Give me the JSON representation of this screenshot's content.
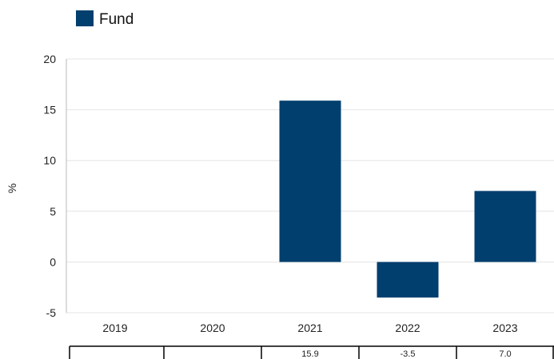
{
  "chart_data": {
    "type": "bar",
    "categories": [
      "2019",
      "2020",
      "2021",
      "2022",
      "2023"
    ],
    "series": [
      {
        "name": "Fund",
        "values": [
          null,
          null,
          15.9,
          -3.5,
          7.0
        ],
        "color": "#003f6e"
      }
    ],
    "ylabel": "%",
    "ylim": [
      -5,
      20
    ],
    "yticks": [
      -5,
      0,
      5,
      10,
      15,
      20
    ],
    "grid": true,
    "legend": "top-left",
    "table_values": [
      "",
      "",
      "15.9",
      "-3.5",
      "7.0"
    ]
  }
}
